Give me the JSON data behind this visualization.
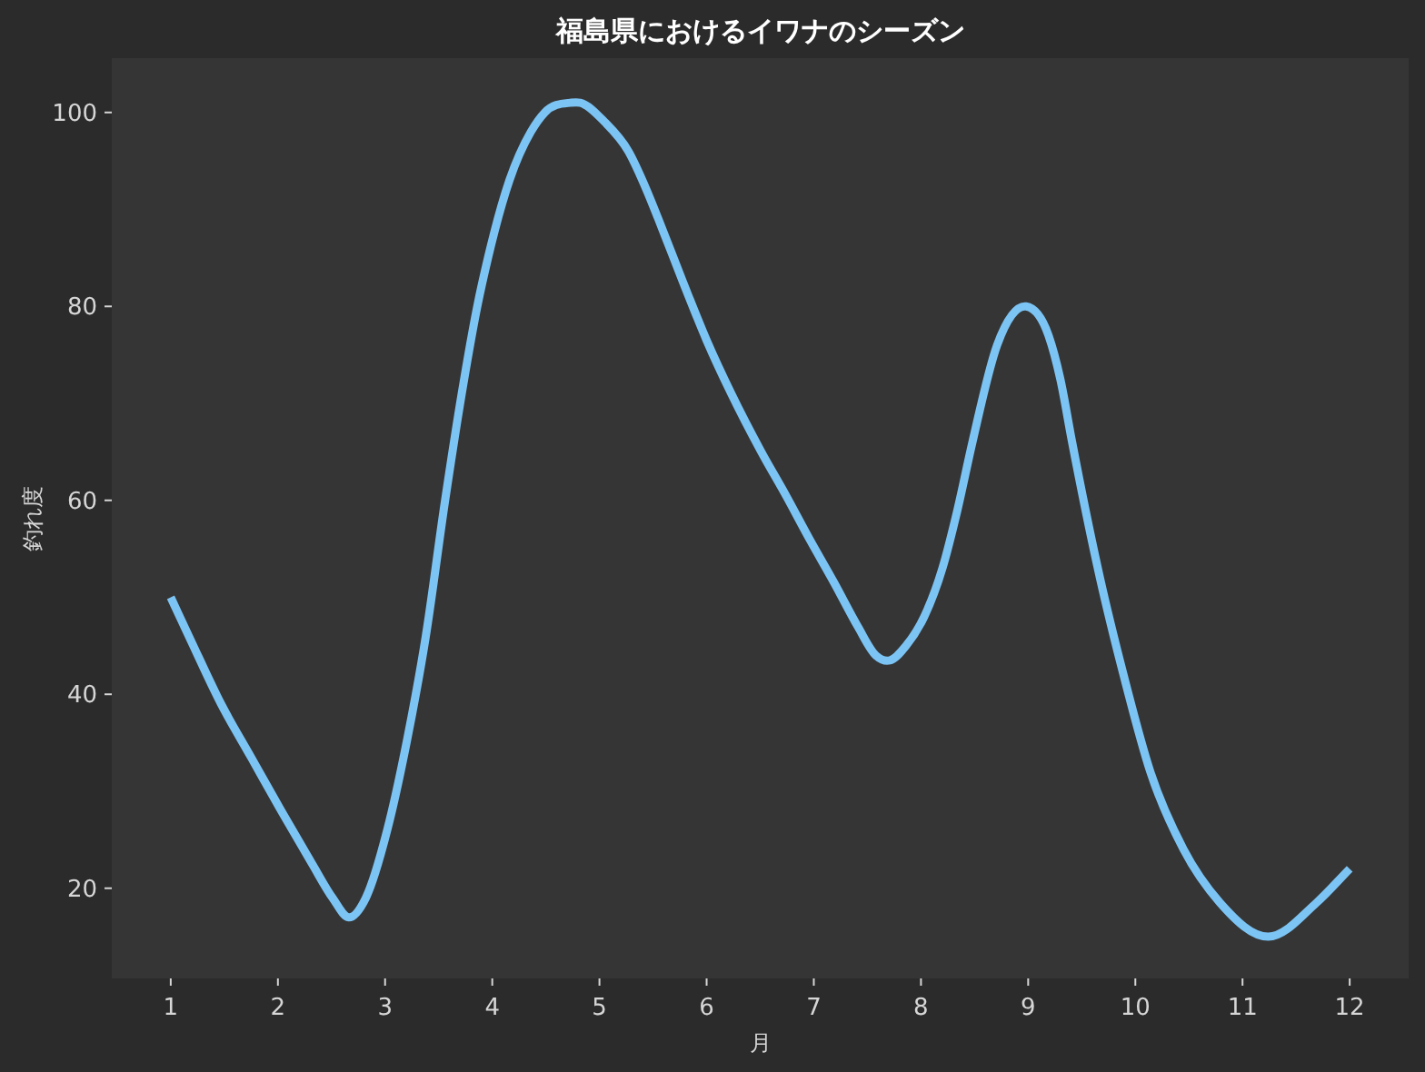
{
  "chart_data": {
    "type": "line",
    "title": "福島県におけるイワナのシーズン",
    "xlabel": "月",
    "ylabel": "釣れ度",
    "x": [
      1,
      1.19,
      1.47,
      1.75,
      2.03,
      2.32,
      2.51,
      2.66,
      2.82,
      3.02,
      3.2,
      3.38,
      3.56,
      3.73,
      3.86,
      3.96,
      4.16,
      4.36,
      4.49,
      4.73,
      4.82,
      5.05,
      5.27,
      5.44,
      5.55,
      5.78,
      6,
      6.23,
      6.51,
      6.74,
      6.96,
      7.19,
      7.41,
      7.58,
      7.71,
      7.86,
      8.03,
      8.2,
      8.34,
      8.48,
      8.71,
      8.98,
      9.19,
      9.3,
      9.41,
      9.67,
      9.89,
      10.14,
      10.45,
      10.79,
      11.24,
      11.69,
      12
    ],
    "series": [
      {
        "color": "#7cc4f4",
        "values": [
          50,
          45.5,
          39,
          33.5,
          28,
          22.5,
          19,
          17,
          19,
          26,
          35,
          46,
          60,
          72,
          80,
          85,
          93,
          98,
          100,
          101,
          101,
          99,
          96,
          92,
          89,
          82.5,
          76.5,
          71,
          65,
          60.5,
          56,
          51.5,
          47,
          44,
          43.5,
          45,
          48,
          53,
          59,
          66,
          76,
          80,
          77,
          72.5,
          66,
          52,
          42,
          32,
          24,
          18.5,
          15,
          18.5,
          22
        ]
      }
    ],
    "xlim": [
      0.45,
      12.55
    ],
    "ylim": [
      10.7,
      105.6
    ],
    "xticks": [
      1,
      2,
      3,
      4,
      5,
      6,
      7,
      8,
      9,
      10,
      11,
      12
    ],
    "yticks": [
      20,
      40,
      60,
      80,
      100
    ],
    "line_style": "solid"
  }
}
